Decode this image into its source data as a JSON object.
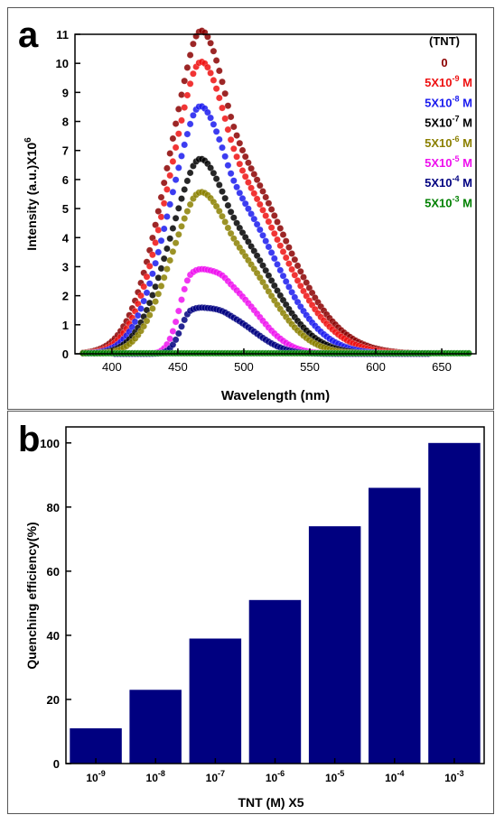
{
  "chart_data": [
    {
      "panel": "a",
      "type": "scatter",
      "xlabel": "Wavelength (nm)",
      "ylabel": "Intensity (a.u.)X10",
      "ylabel_sup": "6",
      "xlim": [
        372,
        676
      ],
      "ylim": [
        0,
        11
      ],
      "x_ticks": [
        400,
        450,
        500,
        550,
        600,
        650
      ],
      "y_ticks": [
        0,
        1,
        2,
        3,
        4,
        5,
        6,
        7,
        8,
        9,
        10,
        11
      ],
      "legend_title": "(TNT)",
      "legend_position": "top-right",
      "series": [
        {
          "name": "0",
          "base": "0",
          "exp": "",
          "unit": "",
          "color": "#8b0000",
          "peak": 10.4,
          "shoulder": 9.8
        },
        {
          "name": "5X10-9 M",
          "base": "5X10",
          "exp": "-9",
          "unit": " M",
          "color": "#ee1111",
          "peak": 9.4,
          "shoulder": 8.7
        },
        {
          "name": "5X10-8 M",
          "base": "5X10",
          "exp": "-8",
          "unit": " M",
          "color": "#1a1aee",
          "peak": 8.0,
          "shoulder": 7.4
        },
        {
          "name": "5X10-7 M",
          "base": "5X10",
          "exp": "-7",
          "unit": " M",
          "color": "#000000",
          "peak": 6.3,
          "shoulder": 5.8
        },
        {
          "name": "5X10-6 M",
          "base": "5X10",
          "exp": "-6",
          "unit": " M",
          "color": "#8b8000",
          "peak": 5.2,
          "shoulder": 4.7
        },
        {
          "name": "5X10-5 M",
          "base": "5X10",
          "exp": "-5",
          "unit": " M",
          "color": "#ee10ee",
          "peak": 2.75,
          "shoulder": 2.45
        },
        {
          "name": "5X10-4 M",
          "base": "5X10",
          "exp": "-4",
          "unit": " M",
          "color": "#000080",
          "peak": 1.5,
          "shoulder": 1.4
        },
        {
          "name": "5X10-3 M",
          "base": "5X10",
          "exp": "-3",
          "unit": " M",
          "color": "#008000",
          "peak": 0.02,
          "shoulder": 0.02
        }
      ]
    },
    {
      "panel": "b",
      "type": "bar",
      "xlabel": "TNT (M) X5",
      "ylabel": "Quenching efficiency(%)",
      "ylim": [
        0,
        105
      ],
      "y_ticks": [
        0,
        20,
        40,
        60,
        80,
        100
      ],
      "categories": [
        "10-9",
        "10-8",
        "10-7",
        "10-6",
        "10-5",
        "10-4",
        "10-3"
      ],
      "category_base": "10",
      "category_exps": [
        "-9",
        "-8",
        "-7",
        "-6",
        "-5",
        "-4",
        "-3"
      ],
      "values": [
        11,
        23,
        39,
        51,
        74,
        86,
        100
      ],
      "bar_color": "#000080"
    }
  ]
}
